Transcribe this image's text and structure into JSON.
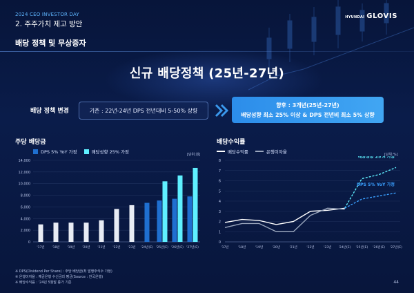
{
  "header": {
    "event": "2024 CEO INVESTOR DAY",
    "section": "2. 주주가치 제고 방안",
    "logo_small": "HYUNDAI",
    "logo_big": "GLOVIS"
  },
  "subtitle": "배당 정책 및 무상증자",
  "main_title": "신규 배당정책 (25년-27년)",
  "policy": {
    "label": "배당 정책 변경",
    "current": "기존 : 22년-24년 DPS 전년대비 5-50% 상향",
    "future_line1": "향후 : 3개년(25년-27년)",
    "future_line2": "배당성향 최소 25% 이상 & DPS 전년비 최소 5% 상향"
  },
  "colors": {
    "accent": "#41a6f3",
    "bar_dark": "#1f6fd0",
    "bar_light": "#5ff0ff",
    "bar_gray": "#e8ecf4",
    "line_gray": "#9aa6bd"
  },
  "footnotes": [
    "※ DPS(Dividend Per Share) : 주당 배당금(최 발행주식수 가정)",
    "※ 은행이자율 : 예금은행 수신금리 평균(Source : 한국은행)",
    "※ 배당수익률 : '24년 5월말 종가 기준"
  ],
  "page_number": "44",
  "chart_data": [
    {
      "type": "bar",
      "title": "주당 배당금",
      "unit": "[단위:원]",
      "categories": [
        "'17년",
        "'18년",
        "'19년",
        "'20년",
        "'21년",
        "'22년",
        "'23년",
        "'24년(E)",
        "'25년(E)",
        "'26년(E)",
        "'27년(E)"
      ],
      "series": [
        {
          "name": "historical",
          "values": [
            3000,
            3300,
            3300,
            3300,
            3700,
            5650,
            6300,
            null,
            null,
            null,
            null
          ]
        },
        {
          "name": "DPS 5% YoY 가정",
          "values": [
            null,
            null,
            null,
            null,
            null,
            null,
            null,
            6700,
            7100,
            7400,
            7800
          ]
        },
        {
          "name": "배당성향 25% 가정",
          "values": [
            null,
            null,
            null,
            null,
            null,
            null,
            null,
            null,
            10400,
            11400,
            12700
          ]
        }
      ],
      "yticks": [
        "0",
        "2,000",
        "4,000",
        "6,000",
        "8,000",
        "10,000",
        "12,000",
        "14,000"
      ],
      "ylim": [
        0,
        14000
      ],
      "legend": [
        "DPS 5% YoY 가정",
        "배당성향 25% 가정"
      ]
    },
    {
      "type": "line",
      "title": "배당수익률",
      "unit": "[단위:%]",
      "categories": [
        "'17년",
        "'18년",
        "'19년",
        "'20년",
        "'21년",
        "'22년",
        "'23년",
        "'24년(E)",
        "'25년(E)",
        "'26년(E)",
        "'27년(E)"
      ],
      "series": [
        {
          "name": "배당수익률",
          "values": [
            1.9,
            2.2,
            2.1,
            1.7,
            2.0,
            3.0,
            3.1,
            3.3,
            null,
            null,
            null
          ]
        },
        {
          "name": "은행이자율",
          "values": [
            1.4,
            1.8,
            1.8,
            1.0,
            1.0,
            2.6,
            3.3,
            3.2,
            null,
            null,
            null
          ]
        },
        {
          "name": "배당성향 25% 가정",
          "values": [
            null,
            null,
            null,
            null,
            null,
            null,
            null,
            3.3,
            6.2,
            6.6,
            7.3
          ]
        },
        {
          "name": "DPS 5% YoY 가정",
          "values": [
            null,
            null,
            null,
            null,
            null,
            null,
            null,
            3.3,
            4.2,
            4.5,
            4.8
          ]
        }
      ],
      "yticks": [
        "0",
        "1",
        "2",
        "3",
        "4",
        "5",
        "6",
        "7",
        "8"
      ],
      "ylim": [
        0,
        8
      ],
      "legend": [
        "배당수익률",
        "은행이자율"
      ],
      "annotations": [
        "배당성향 25% 가정",
        "DPS 5% YoY 가정"
      ]
    }
  ]
}
